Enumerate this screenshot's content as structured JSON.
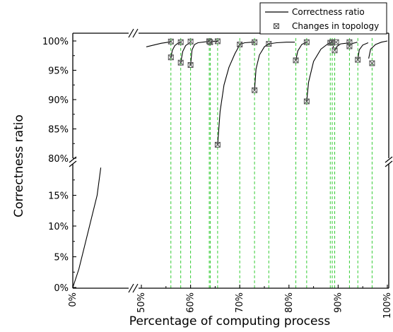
{
  "chart_data": {
    "type": "line",
    "xlabel": "Percentage of computing process",
    "ylabel": "Correctness ratio",
    "x_axis": {
      "broken": true,
      "segments": [
        [
          0,
          5
        ],
        [
          50,
          100
        ]
      ],
      "tick_labels": [
        "0%",
        "50%",
        "60%",
        "70%",
        "80%",
        "90%",
        "100%"
      ],
      "tick_values": [
        0,
        50,
        60,
        70,
        80,
        90,
        100
      ]
    },
    "y_axis": {
      "broken": true,
      "segments": [
        [
          0,
          19.5
        ],
        [
          80,
          100.5
        ]
      ],
      "tick_labels": [
        "0%",
        "5%",
        "10%",
        "15%",
        "80%",
        "85%",
        "90%",
        "95%",
        "100%"
      ],
      "tick_values": [
        0,
        5,
        10,
        15,
        80,
        85,
        90,
        95,
        100
      ]
    },
    "legend": {
      "position": "top-right",
      "entries": [
        "Correctness ratio",
        "Changes in topology"
      ]
    },
    "series": [
      {
        "name": "Correctness ratio",
        "segments": [
          [
            [
              0,
              0
            ],
            [
              1,
              3
            ],
            [
              2,
              7
            ],
            [
              3,
              11
            ],
            [
              4,
              15
            ],
            [
              4.6,
              19.5
            ]
          ],
          [
            [
              51,
              99
            ],
            [
              52.5,
              99.3
            ],
            [
              54,
              99.6
            ],
            [
              55.5,
              99.8
            ],
            [
              55.9,
              99.9
            ]
          ],
          [
            [
              56,
              97.2
            ],
            [
              56.3,
              98.4
            ],
            [
              56.8,
              99.2
            ],
            [
              57.4,
              99.6
            ],
            [
              57.9,
              99.8
            ]
          ],
          [
            [
              58,
              96.3
            ],
            [
              58.4,
              98.2
            ],
            [
              59,
              99.2
            ],
            [
              59.8,
              99.7
            ],
            [
              59.95,
              99.7
            ]
          ],
          [
            [
              60,
              95.9
            ],
            [
              60.3,
              98.5
            ],
            [
              60.8,
              99.4
            ],
            [
              61.5,
              99.7
            ],
            [
              63.5,
              99.9
            ],
            [
              63.9,
              99.95
            ]
          ],
          [
            [
              64,
              99.8
            ],
            [
              64.7,
              99.95
            ],
            [
              65.4,
              99.95
            ]
          ],
          [
            [
              65.5,
              82.3
            ],
            [
              66,
              88
            ],
            [
              66.8,
              92.5
            ],
            [
              67.8,
              95.5
            ],
            [
              69,
              97.8
            ],
            [
              69.9,
              99.2
            ]
          ],
          [
            [
              70,
              99.4
            ],
            [
              71,
              99.7
            ],
            [
              72.5,
              99.8
            ],
            [
              72.9,
              99.8
            ]
          ],
          [
            [
              73,
              91.6
            ],
            [
              73.3,
              95.2
            ],
            [
              74,
              97.6
            ],
            [
              75,
              99
            ],
            [
              75.8,
              99.5
            ]
          ],
          [
            [
              75.9,
              99.5
            ],
            [
              77.5,
              99.7
            ],
            [
              79.5,
              99.8
            ],
            [
              81.2,
              99.8
            ]
          ],
          [
            [
              81.4,
              96.7
            ],
            [
              81.8,
              98.3
            ],
            [
              82.6,
              99.4
            ],
            [
              83.5,
              99.8
            ]
          ],
          [
            [
              83.6,
              89.7
            ],
            [
              84,
              93
            ],
            [
              85,
              96.5
            ],
            [
              86.5,
              98.6
            ],
            [
              88.2,
              99.7
            ]
          ],
          [
            [
              88.4,
              99.7
            ],
            [
              88.7,
              99.8
            ]
          ],
          [
            [
              88.9,
              98.8
            ],
            [
              89.1,
              99.2
            ]
          ],
          [
            [
              89.3,
              98.4
            ],
            [
              89.8,
              99.1
            ],
            [
              90.5,
              99.5
            ],
            [
              91.5,
              99.6
            ],
            [
              92.2,
              99.7
            ]
          ],
          [
            [
              92.3,
              99.1
            ],
            [
              92.6,
              99.4
            ],
            [
              93,
              99.6
            ],
            [
              93.5,
              99.7
            ],
            [
              93.9,
              99.8
            ]
          ],
          [
            [
              94,
              96.8
            ],
            [
              94.3,
              98.5
            ],
            [
              95,
              99.3
            ],
            [
              96.1,
              99.7
            ]
          ],
          [
            [
              96.2,
              97
            ],
            [
              96.6,
              98.6
            ],
            [
              97.6,
              99.4
            ],
            [
              98.8,
              99.8
            ],
            [
              100,
              100
            ]
          ]
        ]
      },
      {
        "name": "Changes in topology",
        "points": [
          [
            56,
            97.2
          ],
          [
            56,
            99.9
          ],
          [
            58,
            96.3
          ],
          [
            58,
            99.8
          ],
          [
            60,
            95.9
          ],
          [
            60,
            99.9
          ],
          [
            63.8,
            99.95
          ],
          [
            64,
            99.8
          ],
          [
            65.5,
            82.3
          ],
          [
            65.5,
            99.95
          ],
          [
            70,
            99.4
          ],
          [
            73,
            91.6
          ],
          [
            73,
            99.8
          ],
          [
            75.9,
            99.5
          ],
          [
            81.4,
            96.7
          ],
          [
            83.6,
            89.7
          ],
          [
            83.6,
            99.8
          ],
          [
            88.4,
            99.7
          ],
          [
            88.8,
            99.8
          ],
          [
            89.3,
            98.4
          ],
          [
            89.6,
            99.8
          ],
          [
            92.3,
            99.1
          ],
          [
            92.3,
            99.8
          ],
          [
            94,
            96.8
          ],
          [
            96.9,
            96.2
          ]
        ]
      }
    ],
    "vertical_markers_x": [
      56,
      58,
      60,
      63.8,
      64,
      65.5,
      70,
      73,
      75.9,
      81.4,
      83.6,
      88.4,
      88.8,
      89.3,
      92.3,
      94,
      96.9
    ],
    "colors": {
      "line": "#000000",
      "marker": "#555555",
      "guide": "#33cc33",
      "axes": "#000000"
    }
  }
}
